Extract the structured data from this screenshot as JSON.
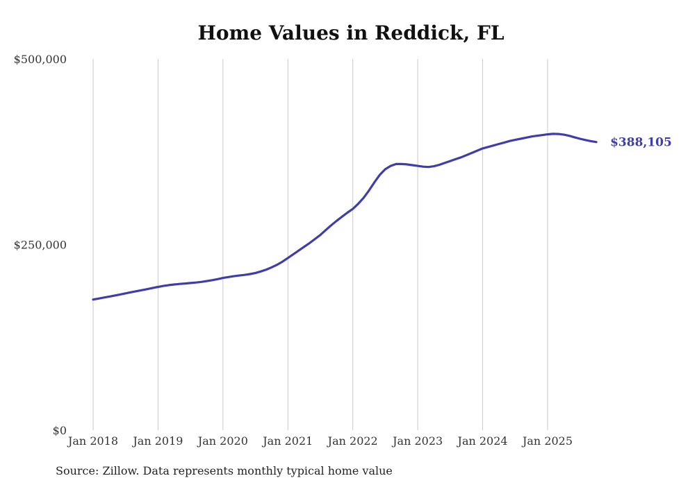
{
  "title": "Home Values in Reddick, FL",
  "source_note": "Source: Zillow. Data represents monthly typical home value",
  "colors": {
    "line": "#3d3dae",
    "end_label": "#3d3dae",
    "grid": "#c9c9c9",
    "axis_text": "#333333",
    "title_text": "#111111",
    "background": "#ffffff"
  },
  "chart_data": {
    "type": "line",
    "title": "Home Values in Reddick, FL",
    "x_start": "2018-01",
    "frequency": "monthly",
    "grid": "vertical-only",
    "legend": "none",
    "ylim": [
      0,
      500000
    ],
    "y_tick_values": [
      0,
      250000,
      500000
    ],
    "y_tick_labels": [
      "$0",
      "$250,000",
      "$500,000"
    ],
    "x_tick_labels": [
      "Jan 2018",
      "Jan 2019",
      "Jan 2020",
      "Jan 2021",
      "Jan 2022",
      "Jan 2023",
      "Jan 2024",
      "Jan 2025"
    ],
    "x_tick_month_indices": [
      0,
      12,
      24,
      36,
      48,
      60,
      72,
      84
    ],
    "last_value": 388105,
    "last_value_label": "$388,105",
    "series": [
      {
        "name": "Typical home value",
        "values": [
          176000,
          177300,
          178700,
          180000,
          181400,
          182800,
          184300,
          185800,
          187200,
          188600,
          190000,
          191500,
          193000,
          194300,
          195400,
          196300,
          197000,
          197600,
          198200,
          198900,
          199700,
          200800,
          202100,
          203500,
          205000,
          206300,
          207400,
          208300,
          209200,
          210300,
          211800,
          213800,
          216300,
          219300,
          222800,
          227000,
          232000,
          237000,
          242000,
          247000,
          252000,
          257500,
          263000,
          269500,
          276000,
          282000,
          287500,
          293000,
          298000,
          305000,
          313000,
          323000,
          334000,
          344000,
          351500,
          356000,
          358500,
          358500,
          358000,
          357000,
          356000,
          355000,
          354500,
          355500,
          357500,
          360000,
          362500,
          365000,
          367500,
          370500,
          373500,
          376500,
          379500,
          381500,
          383500,
          385500,
          387500,
          389500,
          391000,
          392500,
          394000,
          395500,
          396500,
          397500,
          398500,
          399200,
          399000,
          398000,
          396500,
          394500,
          392500,
          390800,
          389300,
          388105
        ]
      }
    ]
  }
}
